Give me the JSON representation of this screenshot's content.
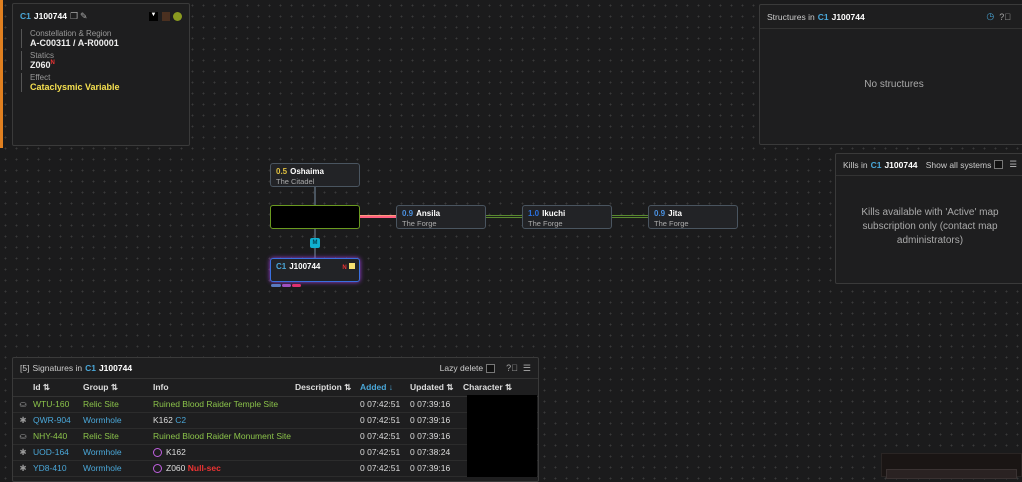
{
  "system_info": {
    "class": "C1",
    "name": "J100744",
    "constellation_label": "Constellation & Region",
    "constellation_value": "A-C00311 / A-R00001",
    "statics_label": "Statics",
    "static": "Z060",
    "static_badge": "N",
    "effect_label": "Effect",
    "effect_value": "Cataclysmic Variable",
    "effect_color": "#f5e050"
  },
  "structures": {
    "title_prefix": "Structures in",
    "class": "C1",
    "name": "J100744",
    "empty": "No structures"
  },
  "kills": {
    "title_prefix": "Kills in",
    "class": "C1",
    "name": "J100744",
    "show_all_label": "Show all systems",
    "message": "Kills available with 'Active' map subscription only (contact map administrators)"
  },
  "map": {
    "nodes": [
      {
        "security": "0.5",
        "name": "Oshaima",
        "region": "The Citadel",
        "sec_color": "#e0c040"
      },
      {
        "security": "0.9",
        "name": "Ansila",
        "region": "The Forge",
        "sec_color": "#4a90e0"
      },
      {
        "security": "1.0",
        "name": "Ikuchi",
        "region": "The Forge",
        "sec_color": "#2a70e0"
      },
      {
        "security": "0.9",
        "name": "Jita",
        "region": "The Forge",
        "sec_color": "#4a90e0"
      }
    ],
    "current": {
      "class": "C1",
      "name": "J100744",
      "badge": "N"
    },
    "connection_badge": "M"
  },
  "signatures": {
    "count": "[5]",
    "title_prefix": "Signatures in",
    "class": "C1",
    "name": "J100744",
    "lazy_delete": "Lazy delete",
    "columns": [
      "Id ⇅",
      "Group ⇅",
      "Info",
      "Description ⇅",
      "Added ↓",
      "Updated ⇅",
      "Character ⇅"
    ],
    "rows": [
      {
        "id": "WTU-160",
        "group": "Relic Site",
        "info": "Ruined Blood Raider Temple Site",
        "info_extra": "",
        "added": "0 07:42:51",
        "updated": "0 07:39:16",
        "kind": "relic"
      },
      {
        "id": "QWR-904",
        "group": "Wormhole",
        "info": "K162",
        "info_extra": "C2",
        "added": "0 07:42:51",
        "updated": "0 07:39:16",
        "kind": "wh"
      },
      {
        "id": "NHY-440",
        "group": "Relic Site",
        "info": "Ruined Blood Raider Monument Site",
        "info_extra": "",
        "added": "0 07:42:51",
        "updated": "0 07:39:16",
        "kind": "relic"
      },
      {
        "id": "UOD-164",
        "group": "Wormhole",
        "info": "K162",
        "info_extra": "",
        "added": "0 07:42:51",
        "updated": "0 07:38:24",
        "kind": "wh-eol"
      },
      {
        "id": "YD8-410",
        "group": "Wormhole",
        "info": "Z060",
        "info_extra": "Null-sec",
        "added": "0 07:42:51",
        "updated": "0 07:39:16",
        "kind": "wh-eol"
      }
    ]
  }
}
